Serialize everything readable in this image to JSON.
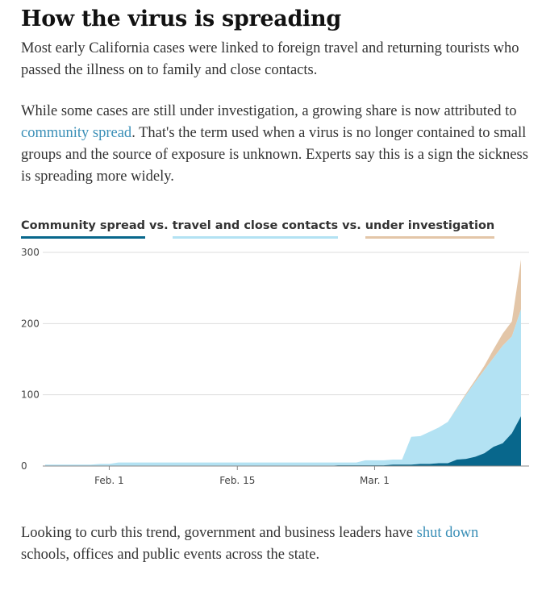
{
  "article": {
    "title": "How the virus is spreading",
    "para1": "Most early California cases were linked to foreign travel and returning tourists who passed the illness on to family and close contacts.",
    "para2_pre": "While some cases are still under investigation, a growing share is now attributed to ",
    "para2_link": "community spread",
    "para2_post": ". That's the term used when a virus is no longer contained to small groups and the source of exposure is unknown. Experts say this is a sign the sickness is spreading more widely.",
    "para3_pre": "Looking to curb this trend, government and business leaders have ",
    "para3_link": "shut down",
    "para3_post": " schools, offices and public events across the state."
  },
  "legend": {
    "community": "Community spread",
    "travel": "travel and close contacts",
    "investigation": "under investigation",
    "vs1": "vs.",
    "vs2": "vs."
  },
  "colors": {
    "community": "#08678c",
    "travel": "#b3e2f3",
    "investigation": "#e3c6a8",
    "grid": "#dddddd",
    "axis": "#888888"
  },
  "chart_data": {
    "type": "area",
    "stacked": true,
    "x_dates": [
      "Jan 25",
      "Jan 26",
      "Jan 27",
      "Jan 28",
      "Jan 29",
      "Jan 30",
      "Jan 31",
      "Feb 1",
      "Feb 2",
      "Feb 3",
      "Feb 4",
      "Feb 5",
      "Feb 6",
      "Feb 7",
      "Feb 8",
      "Feb 9",
      "Feb 10",
      "Feb 11",
      "Feb 12",
      "Feb 13",
      "Feb 14",
      "Feb 15",
      "Feb 16",
      "Feb 17",
      "Feb 18",
      "Feb 19",
      "Feb 20",
      "Feb 21",
      "Feb 22",
      "Feb 23",
      "Feb 24",
      "Feb 25",
      "Feb 26",
      "Feb 27",
      "Feb 28",
      "Feb 29",
      "Mar 1",
      "Mar 2",
      "Mar 3",
      "Mar 4",
      "Mar 5",
      "Mar 6",
      "Mar 7",
      "Mar 8",
      "Mar 9",
      "Mar 10",
      "Mar 11",
      "Mar 12",
      "Mar 13",
      "Mar 14",
      "Mar 15",
      "Mar 16",
      "Mar 17"
    ],
    "series": [
      {
        "name": "Community spread",
        "values": [
          0,
          0,
          0,
          0,
          0,
          0,
          0,
          0,
          0,
          0,
          0,
          0,
          0,
          0,
          0,
          0,
          0,
          0,
          0,
          0,
          0,
          0,
          0,
          0,
          0,
          0,
          0,
          0,
          0,
          0,
          0,
          0,
          1,
          1,
          1,
          1,
          1,
          1,
          2,
          2,
          2,
          3,
          3,
          4,
          4,
          9,
          10,
          13,
          18,
          27,
          32,
          46,
          70
        ]
      },
      {
        "name": "travel and close contacts",
        "values": [
          2,
          2,
          2,
          2,
          2,
          2,
          3,
          3,
          5,
          5,
          5,
          5,
          5,
          5,
          5,
          5,
          5,
          5,
          5,
          5,
          5,
          5,
          5,
          5,
          5,
          5,
          5,
          5,
          5,
          5,
          5,
          5,
          4,
          4,
          4,
          7,
          7,
          7,
          7,
          7,
          39,
          39,
          45,
          50,
          58,
          72,
          90,
          105,
          117,
          125,
          137,
          136,
          150
        ]
      },
      {
        "name": "under investigation",
        "values": [
          0,
          0,
          0,
          0,
          0,
          0,
          0,
          0,
          0,
          0,
          0,
          0,
          0,
          0,
          0,
          0,
          0,
          0,
          0,
          0,
          0,
          0,
          0,
          0,
          0,
          0,
          0,
          0,
          0,
          0,
          0,
          0,
          0,
          0,
          0,
          0,
          0,
          0,
          0,
          0,
          0,
          0,
          0,
          0,
          0,
          1,
          2,
          3,
          6,
          12,
          17,
          21,
          70
        ]
      }
    ],
    "y_ticks": [
      0,
      100,
      200,
      300
    ],
    "x_ticks": [
      {
        "label": "Feb. 1",
        "index": 7
      },
      {
        "label": "Feb. 15",
        "index": 21
      },
      {
        "label": "Mar. 1",
        "index": 36
      }
    ],
    "ylim": [
      0,
      300
    ],
    "legend_position": "top-left"
  }
}
